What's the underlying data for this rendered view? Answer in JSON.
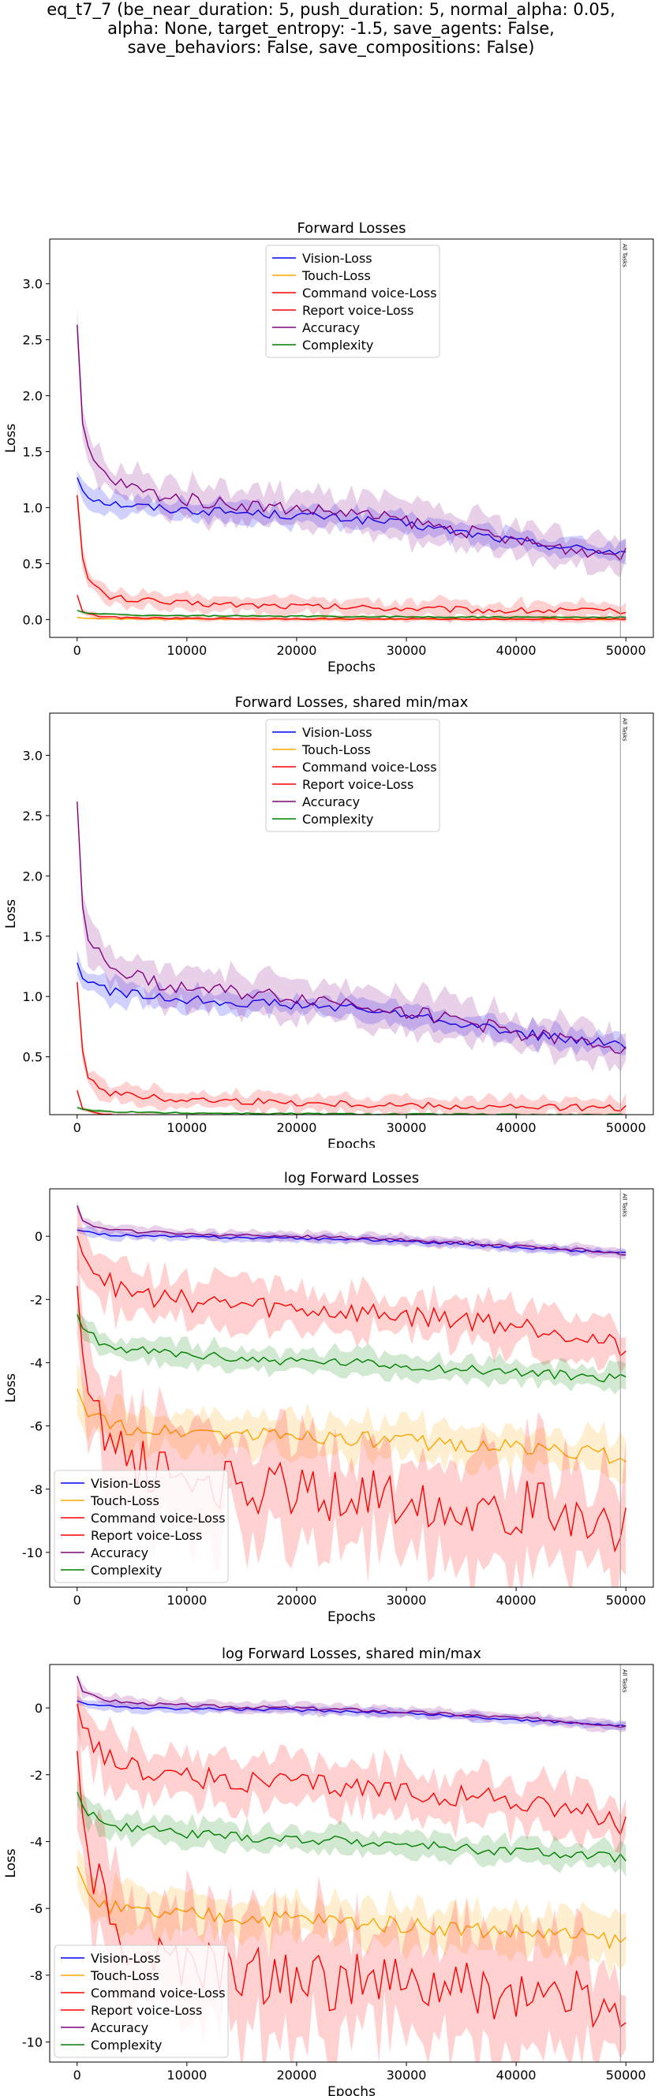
{
  "suptitle": "eq_t7_7 (be_near_duration: 5, push_duration: 5, normal_alpha: 0.05,\nalpha: None, target_entropy: -1.5, save_agents: False,\nsave_behaviors: False, save_compositions: False)",
  "legend_labels": [
    "Vision-Loss",
    "Touch-Loss",
    "Command voice-Loss",
    "Report voice-Loss",
    "Accuracy",
    "Complexity"
  ],
  "colors": {
    "vision": "#0000ff",
    "touch": "#ffa500",
    "command": "#ff0000",
    "report": "#ff0000",
    "accuracy": "#800080",
    "complexity": "#008000"
  },
  "vline_label": "All Tasks",
  "chart_data": [
    {
      "type": "line",
      "title": "Forward Losses",
      "xlabel": "Epochs",
      "ylabel": "Loss",
      "xlim": [
        -2500,
        52500
      ],
      "ylim": [
        -0.16,
        3.4
      ],
      "xticks": [
        0,
        10000,
        20000,
        30000,
        40000,
        50000
      ],
      "yticks": [
        0.0,
        0.5,
        1.0,
        1.5,
        2.0,
        2.5,
        3.0
      ],
      "legend": "top-center",
      "vline_x": 49500,
      "grid": false,
      "log": false
    },
    {
      "type": "line",
      "title": "Forward Losses, shared min/max",
      "xlabel": "Epochs",
      "ylabel": "Loss",
      "xlim": [
        -2500,
        52500
      ],
      "ylim": [
        0.02,
        3.35
      ],
      "xticks": [
        0,
        10000,
        20000,
        30000,
        40000,
        50000
      ],
      "yticks": [
        0.5,
        1.0,
        1.5,
        2.0,
        2.5,
        3.0
      ],
      "legend": "top-center",
      "vline_x": 49500,
      "grid": false,
      "log": false
    },
    {
      "type": "line",
      "title": "log Forward Losses",
      "xlabel": "Epochs",
      "ylabel": "Loss",
      "xlim": [
        -2500,
        52500
      ],
      "ylim": [
        -11.1,
        1.5
      ],
      "xticks": [
        0,
        10000,
        20000,
        30000,
        40000,
        50000
      ],
      "yticks": [
        -10,
        -8,
        -6,
        -4,
        -2,
        0
      ],
      "legend": "bottom-left",
      "vline_x": 49500,
      "grid": false,
      "log": true
    },
    {
      "type": "line",
      "title": "log Forward Losses, shared min/max",
      "xlabel": "Epochs",
      "ylabel": "Loss",
      "xlim": [
        -2500,
        52500
      ],
      "ylim": [
        -10.6,
        1.3
      ],
      "xticks": [
        0,
        10000,
        20000,
        30000,
        40000,
        50000
      ],
      "yticks": [
        -10,
        -8,
        -6,
        -4,
        -2,
        0
      ],
      "legend": "bottom-left",
      "vline_x": 49500,
      "grid": false,
      "log": true
    }
  ],
  "series_shape": {
    "x": [
      0,
      250,
      500,
      1000,
      2000,
      3000,
      5000,
      8000,
      12000,
      16000,
      20000,
      25000,
      30000,
      35000,
      40000,
      45000,
      50000
    ],
    "linear": {
      "vision": [
        1.27,
        1.22,
        1.16,
        1.11,
        1.07,
        1.04,
        1.02,
        0.99,
        0.97,
        0.95,
        0.93,
        0.9,
        0.85,
        0.78,
        0.7,
        0.64,
        0.6
      ],
      "touch": [
        0.02,
        0.015,
        0.012,
        0.01,
        0.008,
        0.006,
        0.005,
        0.004,
        0.004,
        0.003,
        0.003,
        0.003,
        0.003,
        0.002,
        0.002,
        0.002,
        0.002
      ],
      "command": [
        0.22,
        0.12,
        0.07,
        0.05,
        0.03,
        0.02,
        0.015,
        0.01,
        0.01,
        0.008,
        0.007,
        0.006,
        0.005,
        0.004,
        0.004,
        0.003,
        0.003
      ],
      "report": [
        1.12,
        0.8,
        0.55,
        0.35,
        0.26,
        0.2,
        0.18,
        0.15,
        0.14,
        0.13,
        0.12,
        0.11,
        0.1,
        0.09,
        0.08,
        0.08,
        0.07
      ],
      "accuracy": [
        2.62,
        2.1,
        1.75,
        1.5,
        1.35,
        1.25,
        1.18,
        1.1,
        1.05,
        1.02,
        0.99,
        0.95,
        0.88,
        0.8,
        0.7,
        0.63,
        0.58
      ],
      "complexity": [
        0.08,
        0.07,
        0.065,
        0.06,
        0.05,
        0.045,
        0.04,
        0.035,
        0.033,
        0.03,
        0.028,
        0.026,
        0.024,
        0.022,
        0.02,
        0.019,
        0.018
      ]
    },
    "log": {
      "vision": [
        0.2,
        0.18,
        0.15,
        0.12,
        0.08,
        0.05,
        0.02,
        -0.01,
        -0.03,
        -0.05,
        -0.07,
        -0.1,
        -0.16,
        -0.25,
        -0.35,
        -0.45,
        -0.52
      ],
      "touch": [
        -4.8,
        -5.0,
        -5.2,
        -5.5,
        -5.8,
        -6.0,
        -6.1,
        -6.2,
        -6.2,
        -6.3,
        -6.3,
        -6.4,
        -6.5,
        -6.6,
        -6.7,
        -6.8,
        -7.0
      ],
      "command": [
        -1.4,
        -2.5,
        -3.5,
        -4.5,
        -5.5,
        -6.5,
        -7.2,
        -7.6,
        -7.8,
        -8.0,
        -8.1,
        -8.2,
        -8.3,
        -8.5,
        -8.6,
        -8.7,
        -9.2
      ],
      "report": [
        0.1,
        -0.2,
        -0.5,
        -0.8,
        -1.2,
        -1.5,
        -1.8,
        -2.0,
        -2.1,
        -2.2,
        -2.3,
        -2.4,
        -2.5,
        -2.6,
        -2.8,
        -3.0,
        -3.6
      ],
      "accuracy": [
        0.95,
        0.7,
        0.5,
        0.4,
        0.3,
        0.22,
        0.15,
        0.1,
        0.05,
        0.02,
        0.0,
        -0.05,
        -0.12,
        -0.2,
        -0.3,
        -0.4,
        -0.55
      ],
      "complexity": [
        -2.5,
        -2.7,
        -2.9,
        -3.1,
        -3.3,
        -3.5,
        -3.6,
        -3.7,
        -3.8,
        -3.9,
        -3.95,
        -4.0,
        -4.1,
        -4.2,
        -4.3,
        -4.4,
        -4.5
      ]
    }
  }
}
